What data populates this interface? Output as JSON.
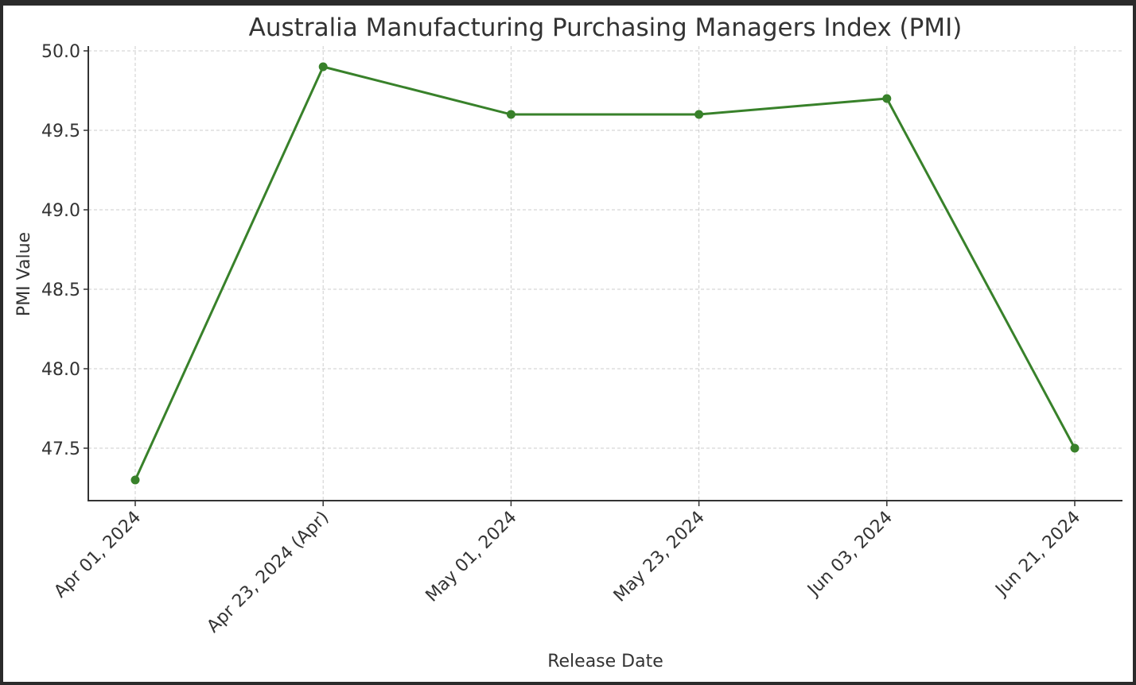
{
  "chart_data": {
    "type": "line",
    "title": "Australia Manufacturing Purchasing Managers Index (PMI)",
    "xlabel": "Release Date",
    "ylabel": "PMI Value",
    "categories": [
      "Apr 01, 2024",
      "Apr 23, 2024 (Apr)",
      "May 01, 2024",
      "May 23, 2024",
      "Jun 03, 2024",
      "Jun 21, 2024"
    ],
    "series": [
      {
        "values": [
          47.3,
          49.9,
          49.6,
          49.6,
          49.7,
          47.5
        ],
        "color": "#38812a"
      }
    ],
    "ylim": [
      47.17,
      50.03
    ],
    "yticks": [
      "47.5",
      "48.0",
      "48.5",
      "49.0",
      "49.5",
      "50.0"
    ],
    "grid": true,
    "legend": "none"
  }
}
